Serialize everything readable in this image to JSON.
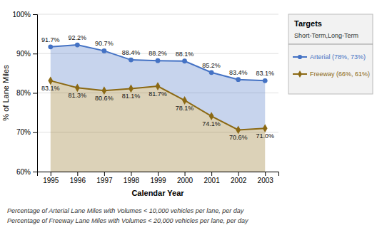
{
  "chart_data": {
    "type": "line",
    "x": [
      1995,
      1996,
      1997,
      1998,
      1999,
      2000,
      2001,
      2002,
      2003
    ],
    "xlim": [
      1994.5,
      2003.5
    ],
    "xticks": [
      1995,
      1996,
      1997,
      1998,
      1999,
      2000,
      2001,
      2002,
      2003
    ],
    "ylim": [
      60,
      100
    ],
    "yticks": [
      {
        "value": 60,
        "label": "60%"
      },
      {
        "value": 70,
        "label": "70%"
      },
      {
        "value": 80,
        "label": "80%"
      },
      {
        "value": 90,
        "label": "90%"
      },
      {
        "value": 100,
        "label": "100%"
      }
    ],
    "xlabel": "Calendar Year",
    "ylabel": "% of Lane Miles",
    "grid": true,
    "data_labels": true,
    "legend_title": "Targets",
    "legend_subtitle": "Short-Term,Long-Term",
    "footnotes": [
      "Percentage of Arterial Lane Miles with Volumes < 10,000 vehicles per lane, per day",
      "Percentage of Freeway Lane Miles with Volumes < 20,000 vehicles per lane, per day"
    ],
    "series": [
      {
        "name": "Arterial (78%, 73%)",
        "color": "#4472C4",
        "marker": "circle",
        "values": [
          91.7,
          92.2,
          90.7,
          88.4,
          88.2,
          88.1,
          85.2,
          83.4,
          83.1
        ],
        "value_labels": [
          "91.7%",
          "92.2%",
          "90.7%",
          "88.4%",
          "88.2%",
          "88.1%",
          "85.2%",
          "83.4%",
          "83.1%"
        ]
      },
      {
        "name": "Freeway (66%, 61%)",
        "color": "#8B6914",
        "marker": "diamond",
        "values": [
          83.1,
          81.3,
          80.6,
          81.1,
          81.7,
          78.1,
          74.1,
          70.6,
          71.0
        ],
        "value_labels": [
          "83.1%",
          "81.3%",
          "80.6%",
          "81.1%",
          "81.7%",
          "78.1%",
          "74.1%",
          "70.6%",
          "71.0%"
        ]
      }
    ]
  }
}
